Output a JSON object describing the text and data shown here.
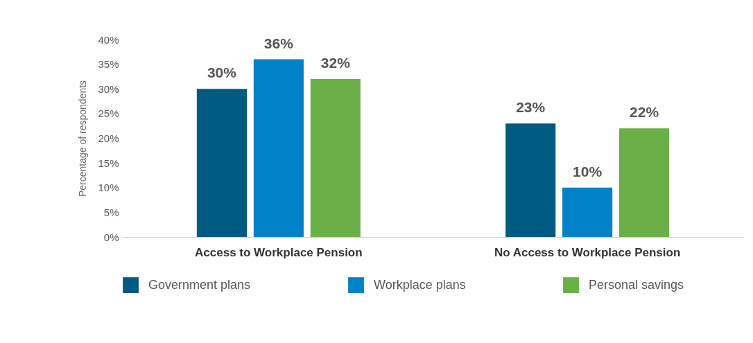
{
  "chart_data": {
    "type": "bar",
    "ylabel": "Percentage of respondents",
    "categories": [
      "Access to Workplace Pension",
      "No Access to Workplace Pension"
    ],
    "series": [
      {
        "name": "Government plans",
        "color": "#005a82",
        "values": [
          30,
          23
        ],
        "value_labels": [
          "30%",
          "23%"
        ]
      },
      {
        "name": "Workplace plans",
        "color": "#0081c8",
        "values": [
          36,
          10
        ],
        "value_labels": [
          "36%",
          "10%"
        ]
      },
      {
        "name": "Personal savings",
        "color": "#6aaf47",
        "values": [
          32,
          22
        ],
        "value_labels": [
          "32%",
          "22%"
        ]
      }
    ],
    "ylim": [
      0,
      40
    ],
    "yticks": [
      {
        "value": 0,
        "label": "0%"
      },
      {
        "value": 5,
        "label": "5%"
      },
      {
        "value": 10,
        "label": "10%"
      },
      {
        "value": 15,
        "label": "15%"
      },
      {
        "value": 20,
        "label": "20%"
      },
      {
        "value": 25,
        "label": "25%"
      },
      {
        "value": 30,
        "label": "30%"
      },
      {
        "value": 35,
        "label": "35%"
      },
      {
        "value": 40,
        "label": "40%"
      }
    ],
    "grid": false,
    "legend": "bottom"
  }
}
